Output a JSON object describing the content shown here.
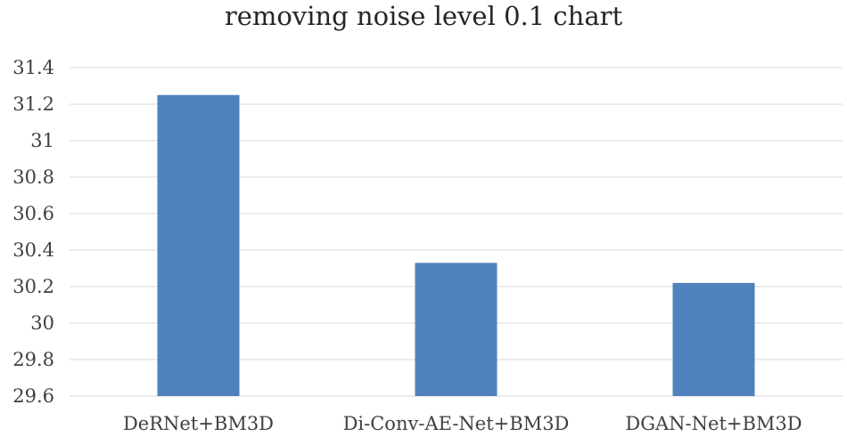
{
  "chart_data": {
    "type": "bar",
    "title": "removing noise level 0.1 chart",
    "categories": [
      "DeRNet+BM3D",
      "Di-Conv-AE-Net+BM3D",
      "DGAN-Net+BM3D"
    ],
    "values": [
      31.25,
      30.33,
      30.22
    ],
    "ylim": [
      29.6,
      31.4
    ],
    "yticks": [
      29.6,
      29.8,
      30,
      30.2,
      30.4,
      30.6,
      30.8,
      31,
      31.2,
      31.4
    ],
    "ytick_labels": [
      "29.6",
      "29.8",
      "30",
      "30.2",
      "30.4",
      "30.6",
      "30.8",
      "31",
      "31.2",
      "31.4"
    ],
    "xlabel": "",
    "ylabel": "",
    "grid": true,
    "legend": false,
    "bar_color": "#4F81BD",
    "grid_color": "#D9D9D9"
  }
}
